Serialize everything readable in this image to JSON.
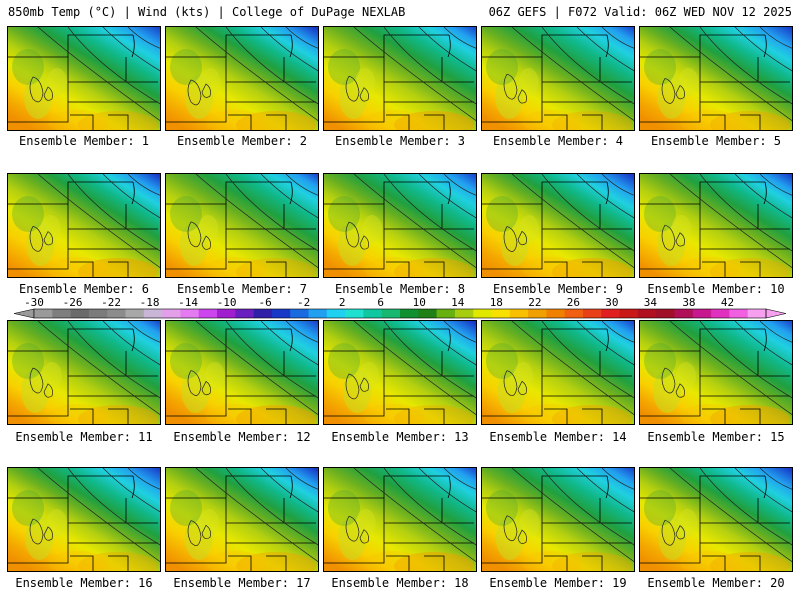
{
  "header": {
    "title_left": "850mb Temp (°C) | Wind (kts) | College of DuPage NEXLAB",
    "title_right": "06Z GEFS | F072 Valid: 06Z WED NOV 12 2025"
  },
  "panels": [
    {
      "label": "Ensemble Member: 1"
    },
    {
      "label": "Ensemble Member: 2"
    },
    {
      "label": "Ensemble Member: 3"
    },
    {
      "label": "Ensemble Member: 4"
    },
    {
      "label": "Ensemble Member: 5"
    },
    {
      "label": "Ensemble Member: 6"
    },
    {
      "label": "Ensemble Member: 7"
    },
    {
      "label": "Ensemble Member: 8"
    },
    {
      "label": "Ensemble Member: 9"
    },
    {
      "label": "Ensemble Member: 10"
    },
    {
      "label": "Ensemble Member: 11"
    },
    {
      "label": "Ensemble Member: 12"
    },
    {
      "label": "Ensemble Member: 13"
    },
    {
      "label": "Ensemble Member: 14"
    },
    {
      "label": "Ensemble Member: 15"
    },
    {
      "label": "Ensemble Member: 16"
    },
    {
      "label": "Ensemble Member: 17"
    },
    {
      "label": "Ensemble Member: 18"
    },
    {
      "label": "Ensemble Member: 19"
    },
    {
      "label": "Ensemble Member: 20"
    }
  ],
  "colorbar": {
    "tick_labels": [
      "-30",
      "-26",
      "-22",
      "-18",
      "-14",
      "-10",
      "-6",
      "-2",
      "2",
      "6",
      "10",
      "14",
      "18",
      "22",
      "26",
      "30",
      "34",
      "38",
      "42"
    ],
    "colors": [
      "#9a9a9a",
      "#7e7e7e",
      "#6a6a6a",
      "#7b7b7b",
      "#8c8c8c",
      "#a8a8a8",
      "#c9b5d6",
      "#e3a0e8",
      "#e57bf0",
      "#cc44ee",
      "#a020d0",
      "#6a20c0",
      "#3020a8",
      "#1838c8",
      "#1a6ae0",
      "#22a0f0",
      "#20d0f0",
      "#20e0d0",
      "#10c8a0",
      "#18b870",
      "#109030",
      "#208018",
      "#66b010",
      "#a8cc10",
      "#e0e800",
      "#f8e000",
      "#f8c000",
      "#f0a000",
      "#f08000",
      "#f06010",
      "#e84018",
      "#e02020",
      "#c81818",
      "#b01020",
      "#a01028",
      "#b01058",
      "#c81890",
      "#e030c0",
      "#f060e0",
      "#f8a0f0"
    ]
  }
}
